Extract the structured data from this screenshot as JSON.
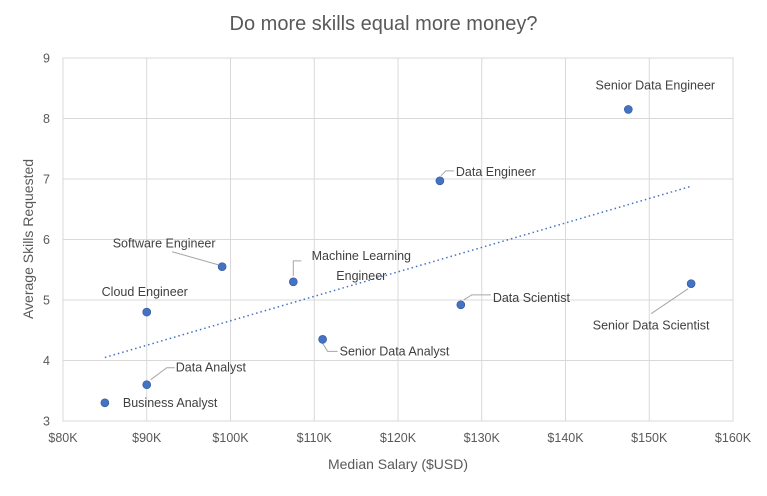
{
  "chart_data": {
    "type": "scatter",
    "title": "Do more skills equal more money?",
    "xlabel": "Median Salary ($USD)",
    "ylabel": "Average Skills Requested",
    "xlim": [
      80000,
      160000
    ],
    "ylim": [
      3,
      9
    ],
    "x_ticks": [
      80000,
      90000,
      100000,
      110000,
      120000,
      130000,
      140000,
      150000,
      160000
    ],
    "x_tick_labels": [
      "$80K",
      "$90K",
      "$100K",
      "$110K",
      "$120K",
      "$130K",
      "$140K",
      "$150K",
      "$160K"
    ],
    "y_ticks": [
      3,
      4,
      5,
      6,
      7,
      8,
      9
    ],
    "y_tick_labels": [
      "3",
      "4",
      "5",
      "6",
      "7",
      "8",
      "9"
    ],
    "grid": true,
    "legend": "none",
    "point_color": "#4472c4",
    "trendline": {
      "type": "linear",
      "style": "dotted",
      "color": "#4472c4",
      "start": {
        "x": 85000,
        "y": 4.05
      },
      "end": {
        "x": 155000,
        "y": 6.88
      }
    },
    "points": [
      {
        "label": "Business Analyst",
        "x": 85000,
        "y": 3.3
      },
      {
        "label": "Data Analyst",
        "x": 90000,
        "y": 3.6
      },
      {
        "label": "Cloud Engineer",
        "x": 90000,
        "y": 4.8
      },
      {
        "label": "Software Engineer",
        "x": 99000,
        "y": 5.55
      },
      {
        "label": "Machine Learning Engineer",
        "x": 107500,
        "y": 5.3
      },
      {
        "label": "Senior Data Analyst",
        "x": 111000,
        "y": 4.35
      },
      {
        "label": "Data Engineer",
        "x": 125000,
        "y": 6.97
      },
      {
        "label": "Data Scientist",
        "x": 127500,
        "y": 4.92
      },
      {
        "label": "Senior Data Engineer",
        "x": 147500,
        "y": 8.15
      },
      {
        "label": "Senior Data Scientist",
        "x": 155000,
        "y": 5.27
      }
    ]
  }
}
